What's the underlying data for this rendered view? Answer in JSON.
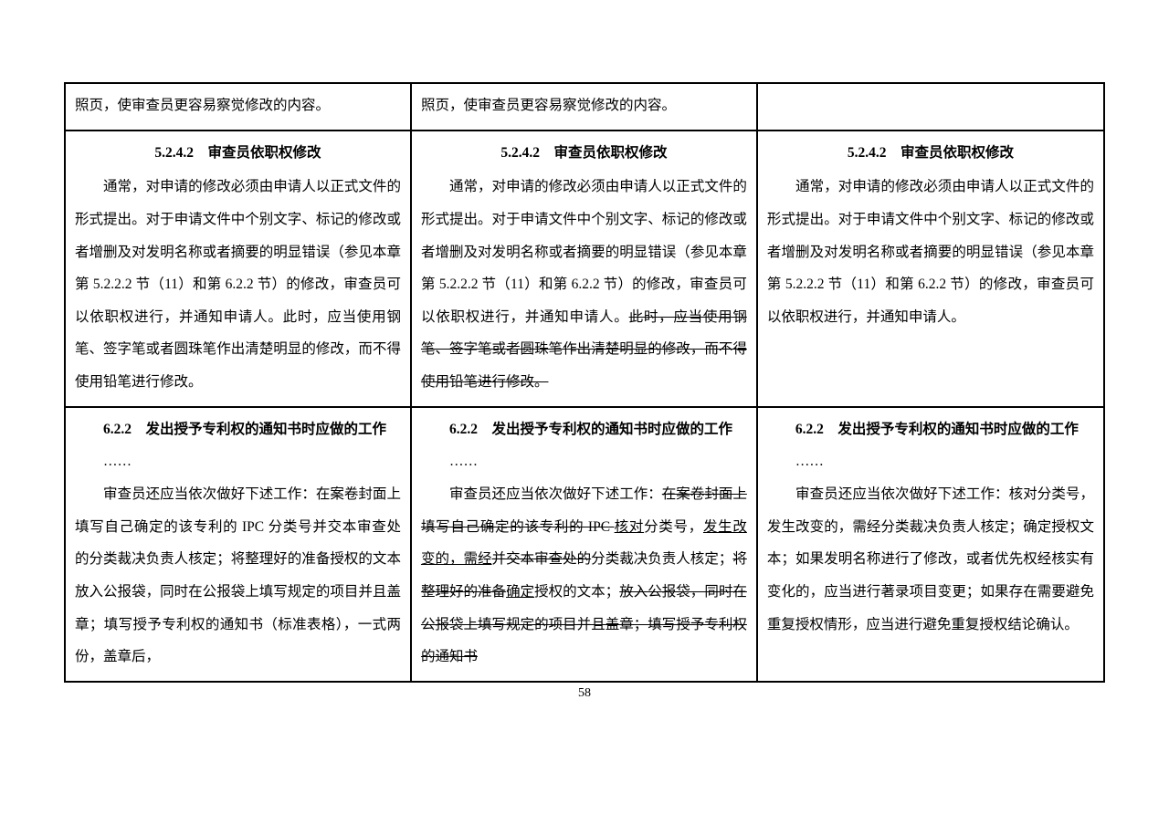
{
  "page_number": "58",
  "row1": {
    "c1": "照页，使审查员更容易察觉修改的内容。",
    "c2": "照页，使审查员更容易察觉修改的内容。",
    "c3": ""
  },
  "row2": {
    "heading": "5.2.4.2　审查员依职权修改",
    "c1": {
      "p1": "　　通常，对申请的修改必须由申请人以正式文件的形式提出。对于申请文件中个别文字、标记的修改或者增删及对发明名称或者摘要的明显错误（参见本章第 5.2.2.2 节（11）和第 6.2.2 节）的修改，审查员可以依职权进行，并通知申请人。此时，应当使用钢笔、签字笔或者圆珠笔作出清楚明显的修改，而不得使用铅笔进行修改。"
    },
    "c2": {
      "p1a": "　　通常，对申请的修改必须由申请人以正式文件的形式提出。对于申请文件中个别文字、标记的修改或者增删及对发明名称或者摘要的明显错误（参见本章第 5.2.2.2 节（11）和第 6.2.2 节）的修改，审查员可以依职权进行，并通知申请人。",
      "p1b": "此时，应当使用钢笔、签字笔或者圆珠笔作出清楚明显的修改，而不得使用铅笔进行修改。"
    },
    "c3": {
      "p1": "　　通常，对申请的修改必须由申请人以正式文件的形式提出。对于申请文件中个别文字、标记的修改或者增删及对发明名称或者摘要的明显错误（参见本章第 5.2.2.2 节（11）和第 6.2.2 节）的修改，审查员可以依职权进行，并通知申请人。"
    }
  },
  "row3": {
    "heading": "6.2.2　发出授予专利权的通知书时应做的工作",
    "ellipsis": "……",
    "c1": {
      "p2": "　　审查员还应当依次做好下述工作：在案卷封面上填写自己确定的该专利的 IPC 分类号并交本审查处的分类裁决负责人核定；将整理好的准备授权的文本放入公报袋，同时在公报袋上填写规定的项目并且盖章；填写授予专利权的通知书（标准表格），一式两份，盖章后，"
    },
    "c2": {
      "t1": "　　审查员还应当依次做好下述工作：",
      "s1": "在案卷封面上填写自己确定的该专利的 IPC ",
      "u1": "核对",
      "t2": "分类号，",
      "u2": "发生改变的，需经",
      "s2": "并交本审查处的",
      "t3": "分类裁决负责人核定；",
      "s3": "将整理好的准备",
      "u3": "确定",
      "t4": "授权的文本；",
      "s4": "放入公报袋，同时在公报袋上填写规定的项目并且盖章；填写授予专利权的通知书"
    },
    "c3": {
      "p2": "　　审查员还应当依次做好下述工作：核对分类号，发生改变的，需经分类裁决负责人核定；确定授权文本；如果发明名称进行了修改，或者优先权经核实有变化的，应当进行著录项目变更；如果存在需要避免重复授权情形，应当进行避免重复授权结论确认。"
    }
  }
}
